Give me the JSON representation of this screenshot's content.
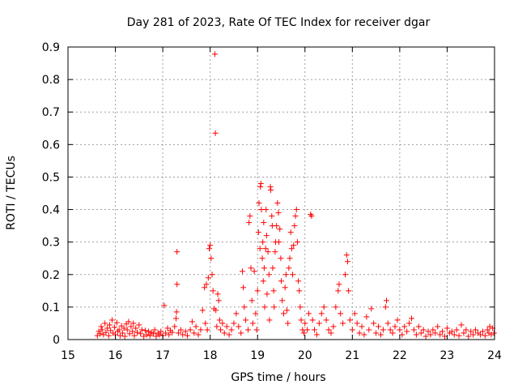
{
  "chart_data": {
    "type": "scatter",
    "title": "Day 281 of 2023, Rate Of TEC Index for receiver dgar",
    "xlabel": "GPS time / hours",
    "ylabel": "ROTI / TECUs",
    "xlim": [
      15,
      24
    ],
    "ylim": [
      0,
      0.9
    ],
    "x_ticks": [
      "15",
      "16",
      "17",
      "18",
      "19",
      "20",
      "21",
      "22",
      "23",
      "24"
    ],
    "y_ticks": [
      "0",
      "0.1",
      "0.2",
      "0.3",
      "0.4",
      "0.5",
      "0.6",
      "0.7",
      "0.8",
      "0.9"
    ],
    "grid": true,
    "marker": "+",
    "color": "#ff0000",
    "series": [
      {
        "points": [
          [
            15.62,
            0.012
          ],
          [
            15.65,
            0.025
          ],
          [
            15.68,
            0.018
          ],
          [
            15.7,
            0.04
          ],
          [
            15.72,
            0.03
          ],
          [
            15.75,
            0.015
          ],
          [
            15.78,
            0.05
          ],
          [
            15.8,
            0.022
          ],
          [
            15.83,
            0.035
          ],
          [
            15.86,
            0.012
          ],
          [
            15.88,
            0.045
          ],
          [
            15.9,
            0.028
          ],
          [
            15.93,
            0.06
          ],
          [
            15.95,
            0.02
          ],
          [
            15.98,
            0.038
          ],
          [
            16.0,
            0.015
          ],
          [
            16.03,
            0.052
          ],
          [
            16.05,
            0.025
          ],
          [
            16.08,
            0.03
          ],
          [
            16.1,
            0.012
          ],
          [
            16.13,
            0.042
          ],
          [
            16.15,
            0.02
          ],
          [
            16.18,
            0.035
          ],
          [
            16.2,
            0.01
          ],
          [
            16.23,
            0.048
          ],
          [
            16.25,
            0.03
          ],
          [
            16.28,
            0.055
          ],
          [
            16.3,
            0.018
          ],
          [
            16.33,
            0.04
          ],
          [
            16.36,
            0.025
          ],
          [
            16.38,
            0.05
          ],
          [
            16.4,
            0.012
          ],
          [
            16.43,
            0.035
          ],
          [
            16.46,
            0.022
          ],
          [
            16.5,
            0.045
          ],
          [
            16.53,
            0.018
          ],
          [
            16.56,
            0.03
          ],
          [
            16.6,
            0.01
          ],
          [
            16.63,
            0.028
          ],
          [
            16.66,
            0.015
          ],
          [
            16.7,
            0.025
          ],
          [
            16.73,
            0.012
          ],
          [
            16.76,
            0.022
          ],
          [
            16.8,
            0.018
          ],
          [
            16.83,
            0.03
          ],
          [
            16.86,
            0.01
          ],
          [
            16.9,
            0.02
          ],
          [
            16.93,
            0.015
          ],
          [
            16.96,
            0.025
          ],
          [
            17.0,
            0.012
          ],
          [
            17.03,
            0.105
          ],
          [
            17.06,
            0.02
          ],
          [
            17.1,
            0.035
          ],
          [
            17.13,
            0.015
          ],
          [
            17.16,
            0.028
          ],
          [
            17.2,
            0.022
          ],
          [
            17.25,
            0.04
          ],
          [
            17.28,
            0.065
          ],
          [
            17.29,
            0.085
          ],
          [
            17.3,
            0.27
          ],
          [
            17.3,
            0.17
          ],
          [
            17.33,
            0.02
          ],
          [
            17.38,
            0.03
          ],
          [
            17.42,
            0.015
          ],
          [
            17.48,
            0.025
          ],
          [
            17.52,
            0.012
          ],
          [
            17.58,
            0.03
          ],
          [
            17.62,
            0.055
          ],
          [
            17.66,
            0.02
          ],
          [
            17.7,
            0.04
          ],
          [
            17.75,
            0.015
          ],
          [
            17.8,
            0.03
          ],
          [
            17.84,
            0.09
          ],
          [
            17.88,
            0.16
          ],
          [
            17.9,
            0.05
          ],
          [
            17.92,
            0.17
          ],
          [
            17.94,
            0.03
          ],
          [
            17.96,
            0.19
          ],
          [
            17.98,
            0.28
          ],
          [
            18.0,
            0.29
          ],
          [
            18.02,
            0.25
          ],
          [
            18.04,
            0.2
          ],
          [
            18.06,
            0.15
          ],
          [
            18.08,
            0.095
          ],
          [
            18.1,
            0.878
          ],
          [
            18.11,
            0.635
          ],
          [
            18.12,
            0.09
          ],
          [
            18.14,
            0.04
          ],
          [
            18.16,
            0.14
          ],
          [
            18.18,
            0.12
          ],
          [
            18.2,
            0.06
          ],
          [
            18.22,
            0.03
          ],
          [
            18.26,
            0.05
          ],
          [
            18.3,
            0.02
          ],
          [
            18.35,
            0.04
          ],
          [
            18.4,
            0.015
          ],
          [
            18.45,
            0.03
          ],
          [
            18.5,
            0.05
          ],
          [
            18.55,
            0.08
          ],
          [
            18.6,
            0.04
          ],
          [
            18.65,
            0.02
          ],
          [
            18.68,
            0.21
          ],
          [
            18.7,
            0.16
          ],
          [
            18.72,
            0.1
          ],
          [
            18.75,
            0.06
          ],
          [
            18.8,
            0.03
          ],
          [
            18.82,
            0.36
          ],
          [
            18.84,
            0.38
          ],
          [
            18.86,
            0.22
          ],
          [
            18.88,
            0.12
          ],
          [
            18.9,
            0.05
          ],
          [
            18.93,
            0.21
          ],
          [
            18.96,
            0.08
          ],
          [
            18.98,
            0.03
          ],
          [
            19.0,
            0.15
          ],
          [
            19.02,
            0.33
          ],
          [
            19.03,
            0.42
          ],
          [
            19.05,
            0.28
          ],
          [
            19.06,
            0.47
          ],
          [
            19.07,
            0.48
          ],
          [
            19.08,
            0.4
          ],
          [
            19.1,
            0.25
          ],
          [
            19.11,
            0.3
          ],
          [
            19.12,
            0.18
          ],
          [
            19.13,
            0.36
          ],
          [
            19.14,
            0.22
          ],
          [
            19.15,
            0.1
          ],
          [
            19.17,
            0.28
          ],
          [
            19.18,
            0.4
          ],
          [
            19.19,
            0.32
          ],
          [
            19.2,
            0.14
          ],
          [
            19.22,
            0.27
          ],
          [
            19.24,
            0.2
          ],
          [
            19.25,
            0.06
          ],
          [
            19.27,
            0.47
          ],
          [
            19.28,
            0.46
          ],
          [
            19.3,
            0.38
          ],
          [
            19.31,
            0.35
          ],
          [
            19.32,
            0.22
          ],
          [
            19.34,
            0.15
          ],
          [
            19.35,
            0.1
          ],
          [
            19.37,
            0.27
          ],
          [
            19.38,
            0.3
          ],
          [
            19.4,
            0.35
          ],
          [
            19.42,
            0.42
          ],
          [
            19.44,
            0.39
          ],
          [
            19.45,
            0.3
          ],
          [
            19.47,
            0.34
          ],
          [
            19.49,
            0.25
          ],
          [
            19.5,
            0.18
          ],
          [
            19.52,
            0.12
          ],
          [
            19.55,
            0.08
          ],
          [
            19.58,
            0.16
          ],
          [
            19.6,
            0.2
          ],
          [
            19.62,
            0.09
          ],
          [
            19.64,
            0.05
          ],
          [
            19.66,
            0.22
          ],
          [
            19.68,
            0.25
          ],
          [
            19.7,
            0.33
          ],
          [
            19.72,
            0.28
          ],
          [
            19.74,
            0.2
          ],
          [
            19.76,
            0.29
          ],
          [
            19.78,
            0.35
          ],
          [
            19.8,
            0.38
          ],
          [
            19.82,
            0.4
          ],
          [
            19.84,
            0.3
          ],
          [
            19.86,
            0.18
          ],
          [
            19.88,
            0.15
          ],
          [
            19.9,
            0.1
          ],
          [
            19.92,
            0.06
          ],
          [
            19.95,
            0.03
          ],
          [
            19.98,
            0.02
          ],
          [
            20.0,
            0.05
          ],
          [
            20.05,
            0.03
          ],
          [
            20.08,
            0.08
          ],
          [
            20.12,
            0.385
          ],
          [
            20.14,
            0.38
          ],
          [
            20.16,
            0.06
          ],
          [
            20.2,
            0.03
          ],
          [
            20.25,
            0.015
          ],
          [
            20.3,
            0.05
          ],
          [
            20.35,
            0.08
          ],
          [
            20.4,
            0.1
          ],
          [
            20.45,
            0.06
          ],
          [
            20.5,
            0.03
          ],
          [
            20.55,
            0.02
          ],
          [
            20.6,
            0.04
          ],
          [
            20.65,
            0.1
          ],
          [
            20.7,
            0.15
          ],
          [
            20.72,
            0.17
          ],
          [
            20.75,
            0.08
          ],
          [
            20.8,
            0.05
          ],
          [
            20.85,
            0.2
          ],
          [
            20.88,
            0.26
          ],
          [
            20.9,
            0.24
          ],
          [
            20.92,
            0.15
          ],
          [
            20.95,
            0.06
          ],
          [
            21.0,
            0.03
          ],
          [
            21.05,
            0.08
          ],
          [
            21.1,
            0.05
          ],
          [
            21.15,
            0.02
          ],
          [
            21.2,
            0.04
          ],
          [
            21.25,
            0.015
          ],
          [
            21.3,
            0.07
          ],
          [
            21.35,
            0.03
          ],
          [
            21.4,
            0.095
          ],
          [
            21.45,
            0.05
          ],
          [
            21.5,
            0.02
          ],
          [
            21.55,
            0.04
          ],
          [
            21.6,
            0.015
          ],
          [
            21.65,
            0.03
          ],
          [
            21.7,
            0.1
          ],
          [
            21.72,
            0.12
          ],
          [
            21.75,
            0.05
          ],
          [
            21.8,
            0.03
          ],
          [
            21.85,
            0.02
          ],
          [
            21.9,
            0.04
          ],
          [
            21.95,
            0.06
          ],
          [
            22.0,
            0.03
          ],
          [
            22.05,
            0.015
          ],
          [
            22.1,
            0.04
          ],
          [
            22.15,
            0.025
          ],
          [
            22.2,
            0.05
          ],
          [
            22.25,
            0.065
          ],
          [
            22.3,
            0.03
          ],
          [
            22.35,
            0.015
          ],
          [
            22.4,
            0.04
          ],
          [
            22.45,
            0.02
          ],
          [
            22.5,
            0.03
          ],
          [
            22.55,
            0.01
          ],
          [
            22.6,
            0.025
          ],
          [
            22.65,
            0.015
          ],
          [
            22.7,
            0.03
          ],
          [
            22.75,
            0.02
          ],
          [
            22.8,
            0.04
          ],
          [
            22.85,
            0.015
          ],
          [
            22.9,
            0.025
          ],
          [
            22.95,
            0.01
          ],
          [
            23.0,
            0.035
          ],
          [
            23.05,
            0.02
          ],
          [
            23.1,
            0.025
          ],
          [
            23.15,
            0.015
          ],
          [
            23.2,
            0.03
          ],
          [
            23.25,
            0.012
          ],
          [
            23.3,
            0.045
          ],
          [
            23.35,
            0.02
          ],
          [
            23.4,
            0.03
          ],
          [
            23.45,
            0.01
          ],
          [
            23.5,
            0.025
          ],
          [
            23.55,
            0.015
          ],
          [
            23.6,
            0.03
          ],
          [
            23.65,
            0.02
          ],
          [
            23.7,
            0.015
          ],
          [
            23.75,
            0.025
          ],
          [
            23.8,
            0.012
          ],
          [
            23.85,
            0.03
          ],
          [
            23.88,
            0.02
          ],
          [
            23.9,
            0.04
          ],
          [
            23.93,
            0.015
          ],
          [
            23.96,
            0.035
          ],
          [
            23.99,
            0.02
          ]
        ]
      }
    ]
  }
}
